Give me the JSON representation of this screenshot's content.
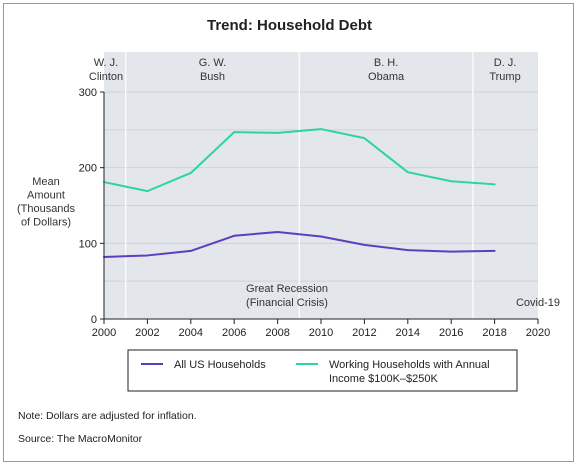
{
  "chart_data": {
    "type": "line",
    "title": "Trend: Household Debt",
    "ylabel_lines": [
      "Mean",
      "Amount",
      "(Thousands",
      "of Dollars)"
    ],
    "xlim": [
      2000,
      2020
    ],
    "ylim": [
      0,
      300
    ],
    "x_ticks": [
      2000,
      2002,
      2004,
      2006,
      2008,
      2010,
      2012,
      2014,
      2016,
      2018,
      2020
    ],
    "y_ticks": [
      0,
      100,
      200,
      300
    ],
    "x": [
      2000,
      2002,
      2004,
      2006,
      2008,
      2010,
      2012,
      2014,
      2016,
      2018
    ],
    "series": [
      {
        "name": "All US Households",
        "values": [
          82,
          84,
          90,
          110,
          115,
          109,
          98,
          91,
          89,
          90
        ],
        "color": "#5b3fbf"
      },
      {
        "name": "Working Households with Annual Income $100K–$250K",
        "name_lines": [
          "Working Households with Annual",
          "Income $100K–$250K"
        ],
        "values": [
          181,
          169,
          193,
          247,
          246,
          251,
          239,
          194,
          182,
          178
        ],
        "color": "#2ed3a2"
      }
    ],
    "presidencies": [
      {
        "label_lines": [
          "W. J.",
          "Clinton"
        ],
        "start": 2000,
        "end": 2001
      },
      {
        "label_lines": [
          "G. W.",
          "Bush"
        ],
        "start": 2001,
        "end": 2009
      },
      {
        "label_lines": [
          "B. H.",
          "Obama"
        ],
        "start": 2009,
        "end": 2017
      },
      {
        "label_lines": [
          "D. J.",
          "Trump"
        ],
        "start": 2017,
        "end": 2020
      }
    ],
    "annotations": [
      {
        "label_lines": [
          "Great Recession",
          "(Financial Crisis)"
        ]
      },
      {
        "label_lines": [
          "Covid-19"
        ]
      }
    ],
    "legend_position": "bottom",
    "grid": true,
    "colors": {
      "plot_background": "#e3e6ea",
      "gridline": "#cfd2d6",
      "divider": "#ffffff"
    }
  },
  "notes": {
    "inflation": "Note: Dollars are adjusted for inflation.",
    "source": "Source: The MacroMonitor"
  }
}
